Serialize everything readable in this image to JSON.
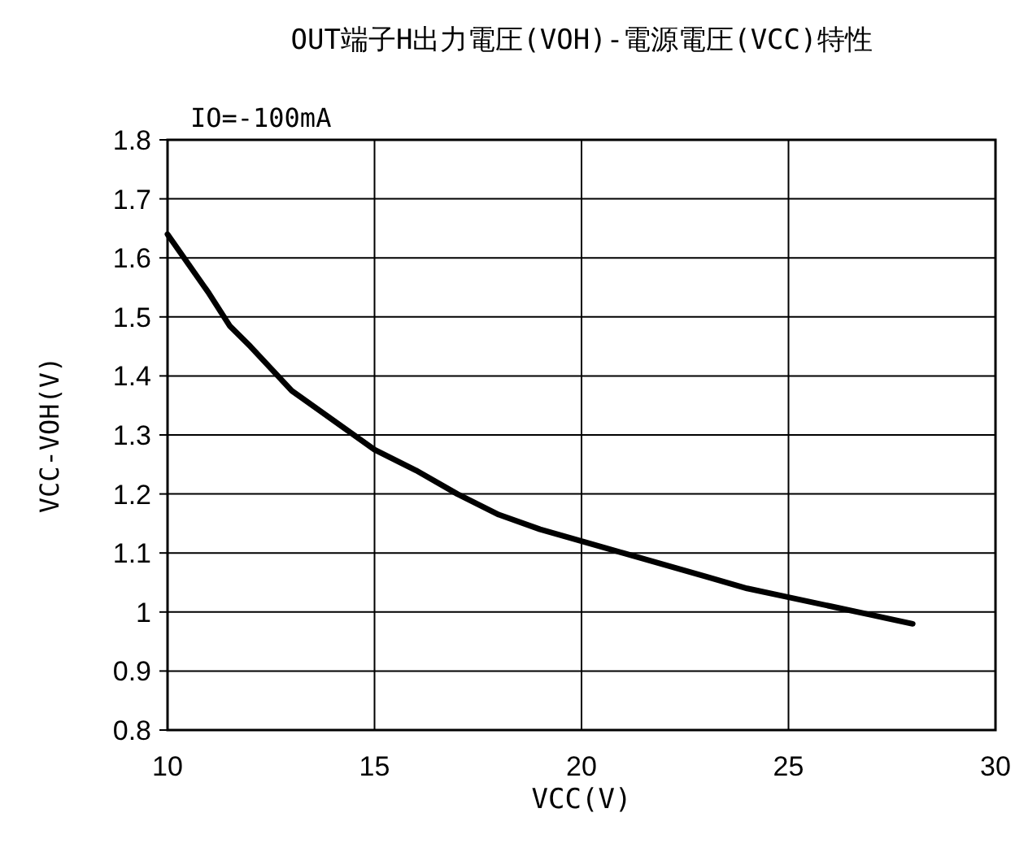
{
  "chart_data": {
    "type": "line",
    "title": "OUT端子H出力電圧(VOH)-電源電圧(VCC)特性",
    "xlabel": "VCC(V)",
    "ylabel": "VCC-VOH(V)",
    "annotations": [
      "IO=-100mA"
    ],
    "x": [
      10,
      11,
      11.5,
      12,
      13,
      14,
      15,
      16,
      17,
      18,
      19,
      20,
      21,
      22,
      23,
      24,
      25,
      26,
      27,
      28
    ],
    "series": [
      {
        "color": "#000000",
        "values": [
          1.64,
          1.54,
          1.485,
          1.45,
          1.375,
          1.325,
          1.275,
          1.24,
          1.2,
          1.165,
          1.14,
          1.12,
          1.1,
          1.08,
          1.06,
          1.04,
          1.025,
          1.01,
          0.995,
          0.98
        ]
      }
    ],
    "xlim": [
      10,
      30
    ],
    "xticks": [
      10,
      15,
      20,
      25,
      30
    ],
    "ylim": [
      0.8,
      1.8
    ],
    "yticks": [
      0.8,
      0.9,
      1,
      1.1,
      1.2,
      1.3,
      1.4,
      1.5,
      1.6,
      1.7,
      1.8
    ],
    "grid": true,
    "marker": "none",
    "line_style": "solid"
  }
}
